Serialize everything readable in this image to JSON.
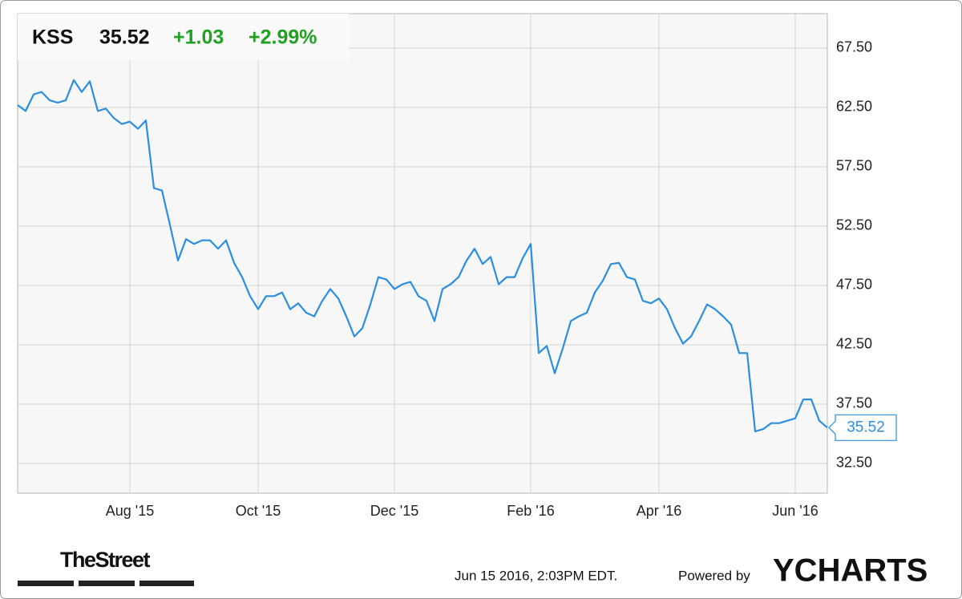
{
  "chart_data": {
    "type": "line",
    "ticker": "KSS",
    "price": 35.52,
    "change": "+1.03",
    "change_percent": "+2.99%",
    "categories": [
      null,
      null,
      null,
      null,
      null,
      null,
      null,
      null,
      null,
      null,
      null,
      null,
      null,
      null,
      "Aug '15",
      null,
      null,
      null,
      null,
      null,
      null,
      null,
      null,
      null,
      null,
      null,
      null,
      null,
      null,
      null,
      "Oct '15",
      null,
      null,
      null,
      null,
      null,
      null,
      null,
      null,
      null,
      null,
      null,
      null,
      null,
      null,
      null,
      null,
      "Dec '15",
      null,
      null,
      null,
      null,
      null,
      null,
      null,
      null,
      null,
      null,
      null,
      null,
      null,
      null,
      null,
      null,
      "Feb '16",
      null,
      null,
      null,
      null,
      null,
      null,
      null,
      null,
      null,
      null,
      null,
      null,
      null,
      null,
      null,
      "Apr '16",
      null,
      null,
      null,
      null,
      null,
      null,
      null,
      null,
      null,
      null,
      null,
      null,
      null,
      null,
      null,
      null,
      "Jun '16",
      null,
      null,
      null,
      null
    ],
    "values": [
      62.7,
      62.2,
      63.6,
      63.8,
      63.1,
      62.9,
      63.1,
      64.8,
      63.8,
      64.7,
      62.2,
      62.4,
      61.6,
      61.1,
      61.3,
      60.7,
      61.4,
      55.7,
      55.5,
      52.6,
      49.6,
      51.4,
      51.0,
      51.3,
      51.3,
      50.6,
      51.3,
      49.4,
      48.2,
      46.6,
      45.5,
      46.6,
      46.6,
      46.9,
      45.5,
      46.0,
      45.2,
      44.9,
      46.2,
      47.2,
      46.4,
      44.9,
      43.2,
      43.9,
      45.9,
      48.2,
      48.0,
      47.2,
      47.6,
      47.8,
      46.6,
      46.2,
      44.5,
      47.2,
      47.6,
      48.2,
      49.6,
      50.6,
      49.3,
      49.9,
      47.6,
      48.2,
      48.2,
      49.8,
      51.0,
      41.8,
      42.4,
      40.1,
      42.2,
      44.5,
      44.9,
      45.2,
      46.9,
      47.9,
      49.3,
      49.4,
      48.2,
      48.0,
      46.2,
      46.0,
      46.4,
      45.5,
      43.9,
      42.6,
      43.2,
      44.5,
      45.9,
      45.5,
      44.9,
      44.2,
      41.8,
      41.8,
      35.2,
      35.4,
      35.9,
      35.9,
      36.1,
      36.3,
      37.9,
      37.9,
      36.1,
      35.52
    ],
    "color": "#2b8ee0",
    "ylim": [
      30.0,
      70.4
    ],
    "yticks": [
      {
        "value": 32.5,
        "label": "32.50"
      },
      {
        "value": 37.5,
        "label": "37.50"
      },
      {
        "value": 42.5,
        "label": "42.50"
      },
      {
        "value": 47.5,
        "label": "47.50"
      },
      {
        "value": 52.5,
        "label": "52.50"
      },
      {
        "value": 57.5,
        "label": "57.50"
      },
      {
        "value": 62.5,
        "label": "62.50"
      },
      {
        "value": 67.5,
        "label": "67.50"
      }
    ],
    "grid": true,
    "timestamp": "Jun 15 2016, 2:03PM EDT.",
    "powered_by": "Powered by",
    "brand": "YCHARTS",
    "publisher": "TheStreet"
  }
}
